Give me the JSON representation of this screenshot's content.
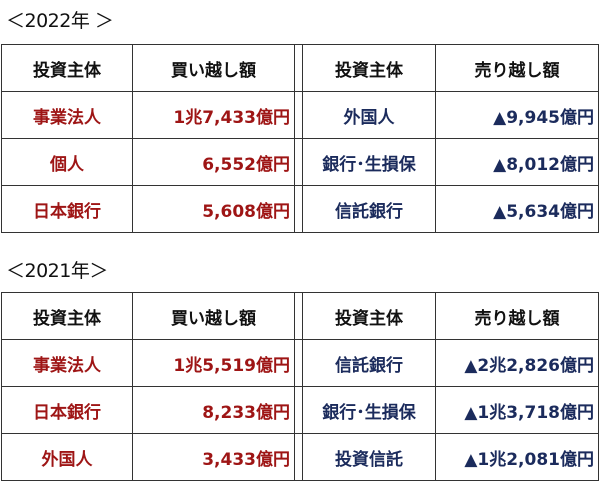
{
  "tables": [
    {
      "title": "＜2022年 ＞",
      "headers": [
        "投資主体",
        "買い越し額",
        "投資主体",
        "売り越し額"
      ],
      "rows": [
        [
          "事業法人",
          "1兆7,433億円",
          "外国人",
          "▲9,945億円"
        ],
        [
          "個人",
          "6,552億円",
          "銀行･生損保",
          "▲8,012億円"
        ],
        [
          "日本銀行",
          "5,608億円",
          "信託銀行",
          "▲5,634億円"
        ]
      ]
    },
    {
      "title": "＜2021年＞",
      "headers": [
        "投資主体",
        "買い越し額",
        "投資主体",
        "売り越し額"
      ],
      "rows": [
        [
          "事業法人",
          "1兆5,519億円",
          "信託銀行",
          "▲2兆2,826億円"
        ],
        [
          "日本銀行",
          "8,233億円",
          "銀行･生損保",
          "▲1兆3,718億円"
        ],
        [
          "外国人",
          "3,433億円",
          "投資信託",
          "▲1兆2,081億円"
        ]
      ]
    }
  ],
  "colors": {
    "buy": "#9e1515",
    "sell": "#1b2b5c"
  }
}
